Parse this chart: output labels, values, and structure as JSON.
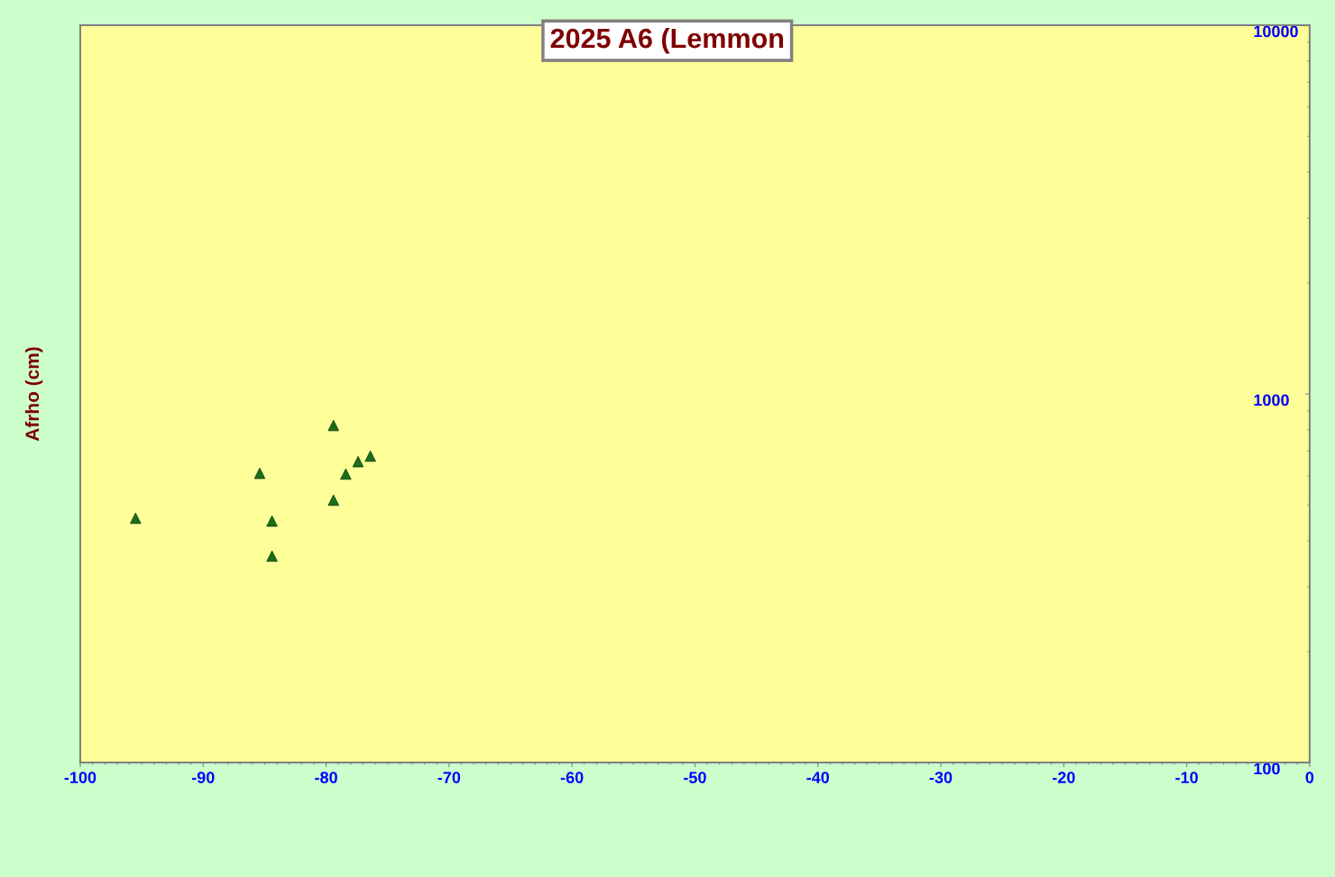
{
  "chart_data": {
    "type": "scatter",
    "title": "2025 A6 (Lemmon",
    "ylabel": "Afrho (cm)",
    "log": "y",
    "grid": false,
    "legend": false,
    "marker": "triangle",
    "xlim": [
      -100,
      0
    ],
    "xticks": [
      -100,
      -90,
      -80,
      -70,
      -60,
      -50,
      -40,
      -30,
      -20,
      -10,
      0
    ],
    "ylim": [
      100,
      10000
    ],
    "yticks": [
      100,
      1000,
      10000
    ],
    "series": [
      {
        "color": "#1a6e1a",
        "x": [
          -95.5,
          -85.4,
          -84.4,
          -84.4,
          -79.4,
          -79.4,
          -78.4,
          -77.4,
          -76.4
        ],
        "values": [
          460,
          609,
          452,
          363,
          821,
          515,
          606,
          655,
          678
        ]
      }
    ]
  }
}
